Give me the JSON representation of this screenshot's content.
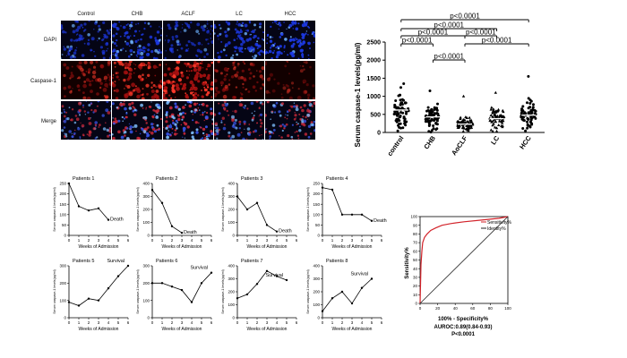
{
  "microscopy": {
    "columns": [
      "Control",
      "CHB",
      "ACLF",
      "LC",
      "HCC"
    ],
    "rows": [
      "DAPI",
      "Caspase-1",
      "Merge"
    ],
    "row_colors": {
      "DAPI": "#1a2bd6",
      "Caspase-1": "#d21a1a",
      "Merge": "#6a1ab0"
    }
  },
  "chart_data": [
    {
      "type": "scatter",
      "title": "",
      "ylabel": "Serum caspase-1 levels(pg/ml)",
      "xlabel": "",
      "categories": [
        "control",
        "CHB",
        "AoCLF",
        "LC",
        "HCC"
      ],
      "y_ticks": [
        0,
        500,
        1000,
        1500,
        2000,
        2500
      ],
      "ylim": [
        0,
        2500
      ],
      "approx_means": [
        620,
        430,
        230,
        380,
        480
      ],
      "approx_max": [
        1350,
        1150,
        1000,
        1100,
        1550
      ],
      "comparisons": [
        {
          "from": "control",
          "to": "HCC",
          "label": "p<0.0001"
        },
        {
          "from": "control",
          "to": "LC",
          "label": "p<0.0001"
        },
        {
          "from": "control",
          "to": "AoCLF",
          "label": "p<0.0001"
        },
        {
          "from": "AoCLF",
          "to": "LC",
          "label": "p<0.0001"
        },
        {
          "from": "control",
          "to": "CHB",
          "label": "p<0.0001"
        },
        {
          "from": "AoCLF",
          "to": "HCC",
          "label": "p<0.0001"
        },
        {
          "from": "CHB",
          "to": "AoCLF",
          "label": "p<0.0001"
        }
      ]
    },
    {
      "type": "line",
      "title": "Patients 1",
      "outcome": "Death",
      "xlabel": "Weeks of Admission",
      "ylabel": "Serum caspase-1 levels(pg/ml)",
      "x": [
        0,
        1,
        2,
        3,
        4
      ],
      "y": [
        250,
        140,
        120,
        130,
        75
      ],
      "xlim": [
        0,
        6
      ],
      "ylim": [
        0,
        250
      ],
      "y_ticks": [
        0,
        50,
        100,
        150,
        200,
        250
      ]
    },
    {
      "type": "line",
      "title": "Patients 2",
      "outcome": "Death",
      "xlabel": "Weeks of Admission",
      "ylabel": "Serum caspase-1 levels(pg/ml)",
      "x": [
        0,
        1,
        2,
        3
      ],
      "y": [
        350,
        250,
        70,
        20
      ],
      "xlim": [
        0,
        6
      ],
      "ylim": [
        0,
        400
      ],
      "y_ticks": [
        0,
        100,
        200,
        300,
        400
      ]
    },
    {
      "type": "line",
      "title": "Patients 3",
      "outcome": "Death",
      "xlabel": "Weeks of Admission",
      "ylabel": "Serum caspase-1 levels(pg/ml)",
      "x": [
        0,
        1,
        2,
        3,
        4
      ],
      "y": [
        300,
        200,
        250,
        80,
        30
      ],
      "xlim": [
        0,
        6
      ],
      "ylim": [
        0,
        400
      ],
      "y_ticks": [
        0,
        100,
        200,
        300,
        400
      ]
    },
    {
      "type": "line",
      "title": "Patients 4",
      "outcome": "Death",
      "xlabel": "Weeks of Admission",
      "ylabel": "Serum caspase-1 levels(pg/ml)",
      "x": [
        0,
        1,
        2,
        3,
        4,
        5
      ],
      "y": [
        230,
        220,
        100,
        100,
        100,
        70
      ],
      "xlim": [
        0,
        6
      ],
      "ylim": [
        0,
        250
      ],
      "y_ticks": [
        0,
        50,
        100,
        150,
        200,
        250
      ]
    },
    {
      "type": "line",
      "title": "Patients 5",
      "outcome": "Survival",
      "xlabel": "Weeks of Admission",
      "ylabel": "Serum caspase-1 levels(pg/ml)",
      "x": [
        0,
        1,
        2,
        3,
        4,
        5,
        6
      ],
      "y": [
        90,
        70,
        110,
        100,
        170,
        240,
        300
      ],
      "xlim": [
        0,
        6
      ],
      "ylim": [
        0,
        300
      ],
      "y_ticks": [
        0,
        100,
        200,
        300
      ]
    },
    {
      "type": "line",
      "title": "Patients 6",
      "outcome": "Survival",
      "xlabel": "Weeks of Admission",
      "ylabel": "Serum caspase-1 levels(pg/ml)",
      "x": [
        0,
        1,
        2,
        3,
        4,
        5,
        6
      ],
      "y": [
        200,
        200,
        180,
        160,
        90,
        200,
        260
      ],
      "xlim": [
        0,
        6
      ],
      "ylim": [
        0,
        300
      ],
      "y_ticks": [
        0,
        100,
        200,
        300
      ]
    },
    {
      "type": "line",
      "title": "Patients 7",
      "outcome": "Survival",
      "xlabel": "Weeks of Admission",
      "ylabel": "Serum caspase-1 levels(pg/ml)",
      "x": [
        0,
        1,
        2,
        3,
        4,
        5
      ],
      "y": [
        150,
        180,
        260,
        360,
        320,
        290
      ],
      "xlim": [
        0,
        6
      ],
      "ylim": [
        0,
        400
      ],
      "y_ticks": [
        0,
        100,
        200,
        300,
        400
      ]
    },
    {
      "type": "line",
      "title": "Patients 8",
      "outcome": "Survival",
      "xlabel": "Weeks of Admission",
      "ylabel": "Serum caspase-1 levels(pg/ml)",
      "x": [
        0,
        1,
        2,
        3,
        4,
        5
      ],
      "y": [
        50,
        150,
        200,
        110,
        230,
        300
      ],
      "xlim": [
        0,
        6
      ],
      "ylim": [
        0,
        400
      ],
      "y_ticks": [
        0,
        100,
        200,
        300,
        400
      ]
    },
    {
      "type": "line",
      "title": "",
      "xlabel": "100% - Specificity%",
      "ylabel": "Sensitivity%",
      "xlim": [
        0,
        100
      ],
      "ylim": [
        0,
        100
      ],
      "x_ticks": [
        0,
        20,
        40,
        60,
        80,
        100
      ],
      "y_ticks": [
        0,
        10,
        20,
        30,
        40,
        50,
        60,
        70,
        80,
        90,
        100
      ],
      "legend": [
        "Sensitivity%",
        "Identity%"
      ],
      "legend_position": "top-right",
      "series": [
        {
          "name": "Sensitivity%",
          "color": "#d2232a",
          "x": [
            0,
            1,
            2,
            3,
            5,
            8,
            12,
            18,
            25,
            35,
            50,
            70,
            90,
            100
          ],
          "y": [
            0,
            45,
            60,
            70,
            76,
            80,
            84,
            87,
            90,
            92,
            94,
            96,
            98,
            100
          ]
        },
        {
          "name": "Identity%",
          "color": "#222222",
          "x": [
            0,
            100
          ],
          "y": [
            0,
            100
          ]
        }
      ],
      "annotation_lines": [
        "AUROC:0.89(0.84-0.93)",
        "P<0.0001"
      ]
    }
  ]
}
